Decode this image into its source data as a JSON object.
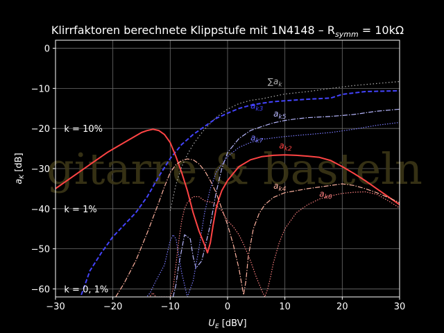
{
  "chart_data": {
    "type": "line",
    "title": "Klirrfaktoren berechnete Klippstufe mit 1N4148 – R",
    "title_sub": "symm",
    "title_tail": " =  10kΩ",
    "xlabel": "U",
    "xlabel_sub": "E",
    "xlabel_tail": " [dBV]",
    "ylabel": "a",
    "ylabel_sub": "K",
    "ylabel_tail": " [dB]",
    "xlim": [
      -30,
      30
    ],
    "ylim": [
      -62,
      2
    ],
    "xticks": [
      -30,
      -20,
      -10,
      0,
      10,
      20,
      30
    ],
    "yticks": [
      0,
      -10,
      -20,
      -30,
      -40,
      -50,
      -60
    ],
    "xtick_labels": [
      "−30",
      "−20",
      "−10",
      "0",
      "10",
      "20",
      "30"
    ],
    "ytick_labels": [
      "0",
      "−10",
      "−20",
      "−30",
      "−40",
      "−50",
      "−60"
    ],
    "grid": true,
    "watermark": "gitarre & basteln",
    "annotations": [
      {
        "text": "k = 10%",
        "x": -28.5,
        "y": -20
      },
      {
        "text": "k = 1%",
        "x": -28.5,
        "y": -40
      },
      {
        "text": "k = 0, 1%",
        "x": -28.5,
        "y": -60
      }
    ],
    "series": [
      {
        "name": "∑a_k",
        "color": "#b3b3b3",
        "dash": "1.5,3",
        "label": {
          "main": "∑a",
          "sub": "k",
          "x": 7.0,
          "y": -9.0
        },
        "x": [
          -10,
          -9,
          -8,
          -7,
          -6,
          -5,
          -4,
          -3,
          -2,
          -1,
          0,
          2,
          4,
          6,
          8,
          10,
          14,
          18,
          22,
          26,
          30
        ],
        "y": [
          -40.5,
          -34,
          -29.5,
          -26.5,
          -24,
          -22,
          -20.2,
          -18.7,
          -17.3,
          -16.2,
          -15.2,
          -13.8,
          -13,
          -12.6,
          -12,
          -11.4,
          -10.8,
          -10,
          -9.3,
          -8.8,
          -8.3
        ]
      },
      {
        "name": "a_k3",
        "color": "#4444ff",
        "dash": "6,3",
        "width": 2,
        "label": {
          "main": "a",
          "sub": "k3",
          "x": 4.0,
          "y": -15.0
        },
        "x": [
          -25.5,
          -24,
          -22,
          -20,
          -18,
          -16,
          -14,
          -12,
          -10,
          -8,
          -6,
          -4,
          -2,
          0,
          2,
          4,
          6,
          8,
          10,
          14,
          18,
          20,
          24,
          30
        ],
        "y": [
          -61.5,
          -55.5,
          -51,
          -47,
          -44,
          -41,
          -37,
          -32,
          -27.5,
          -24,
          -21.5,
          -19.5,
          -17.5,
          -16.2,
          -15,
          -14.2,
          -13.7,
          -13.3,
          -13.1,
          -12.7,
          -12.4,
          -11.5,
          -10.8,
          -10.6
        ]
      },
      {
        "name": "a_k5",
        "color": "#b8b8ff",
        "dash": "7,2,1.5,2",
        "label": {
          "main": "a",
          "sub": "k5",
          "x": 8.0,
          "y": -17.0
        },
        "x": [
          -9.5,
          -9,
          -8.5,
          -7.5,
          -6.5,
          -6,
          -5.5,
          -4.5,
          -3,
          -2,
          -1,
          0,
          2,
          4,
          6,
          8,
          10,
          12,
          14,
          18,
          22,
          26,
          30
        ],
        "y": [
          -62,
          -59,
          -54,
          -46.5,
          -47.5,
          -52,
          -54.8,
          -53,
          -44,
          -36,
          -30,
          -26,
          -22.5,
          -20.5,
          -19.5,
          -18.6,
          -18,
          -17.6,
          -17.3,
          -17,
          -16.5,
          -15.7,
          -15.2
        ]
      },
      {
        "name": "a_k7",
        "color": "#7a7aff",
        "dash": "1.5,2",
        "label": {
          "main": "a",
          "sub": "k7",
          "x": 4.0,
          "y": -23.0
        },
        "x": [
          -14,
          -13.5,
          -13,
          -12.5,
          -11,
          -10,
          -9.5,
          -9,
          -8,
          -7,
          -6,
          -5,
          -4,
          -3,
          -2,
          0,
          2,
          4,
          6,
          10,
          14,
          18,
          22,
          26,
          30
        ],
        "y": [
          -61.8,
          -61,
          -59.5,
          -58,
          -54,
          -48,
          -46.5,
          -47.5,
          -56,
          -62,
          -58,
          -50,
          -41,
          -35,
          -31,
          -27,
          -24.7,
          -23.5,
          -22.7,
          -22,
          -21.5,
          -21,
          -20.2,
          -19.2,
          -18.5
        ]
      },
      {
        "name": "a_k2",
        "color": "#ff4444",
        "dash": "",
        "width": 2,
        "label": {
          "main": "a",
          "sub": "k2",
          "x": 9.0,
          "y": -25.0
        },
        "x": [
          -30,
          -27,
          -24,
          -21,
          -18,
          -15,
          -14,
          -13,
          -12,
          -11,
          -10,
          -9,
          -8,
          -7,
          -6,
          -5,
          -4,
          -3.5,
          -3,
          -2.5,
          -2,
          -1.5,
          -1,
          0,
          1,
          2,
          4,
          6,
          8,
          10,
          12,
          14,
          16,
          18,
          20,
          22,
          24,
          26,
          28,
          30
        ],
        "y": [
          -35,
          -32,
          -29,
          -26,
          -23.5,
          -21,
          -20.5,
          -20.2,
          -20.5,
          -21.5,
          -23.5,
          -27,
          -31,
          -35.5,
          -41,
          -45.5,
          -49,
          -51,
          -48.5,
          -44,
          -40,
          -37.5,
          -35.5,
          -33,
          -31.2,
          -29.5,
          -27.8,
          -27,
          -26.7,
          -26.6,
          -26.7,
          -26.9,
          -27.2,
          -28,
          -29.5,
          -31.2,
          -33,
          -35,
          -37,
          -39
        ]
      },
      {
        "name": "a_k4",
        "color": "#ffb3a0",
        "dash": "7,2,1.5,2",
        "label": {
          "main": "a",
          "sub": "k4",
          "x": 8.0,
          "y": -35.0
        },
        "x": [
          -19.5,
          -18,
          -16,
          -14,
          -12,
          -11,
          -10,
          -9,
          -8,
          -7,
          -6,
          -5,
          -4,
          -3,
          -2,
          -1,
          0,
          1,
          2,
          2.8,
          3.2,
          3.6,
          4.5,
          5.5,
          6.5,
          8,
          10,
          12,
          14,
          16,
          18,
          20,
          22,
          24,
          26,
          28,
          30
        ],
        "y": [
          -62,
          -58.5,
          -53,
          -46,
          -38.5,
          -34.5,
          -31,
          -29,
          -28,
          -27.6,
          -27.8,
          -28.8,
          -30.5,
          -33,
          -36,
          -40,
          -44,
          -49,
          -55,
          -61.5,
          -58,
          -52,
          -45,
          -41.2,
          -39,
          -37.2,
          -36,
          -35.5,
          -35,
          -34.6,
          -34.2,
          -33.8,
          -34.2,
          -35,
          -36,
          -37.2,
          -38.5
        ]
      },
      {
        "name": "a_k6",
        "color": "#ff8080",
        "dash": "1.5,2",
        "label": {
          "main": "a",
          "sub": "k6",
          "x": 16.0,
          "y": -37.0
        },
        "x": [
          -13.5,
          -13,
          -12.5,
          -10,
          -9.5,
          -9,
          -8.5,
          -8,
          -7.5,
          -7,
          -6,
          -5,
          -4,
          -2.5,
          -1,
          0,
          1,
          2,
          3,
          4,
          5,
          6,
          6.5,
          7,
          7.5,
          8,
          9,
          10,
          12,
          14,
          16,
          18,
          20,
          22,
          24,
          26,
          28,
          30
        ],
        "y": [
          -61.8,
          -61,
          -62,
          -62,
          -60,
          -54,
          -48,
          -43,
          -40,
          -38.5,
          -37,
          -37,
          -38,
          -38.5,
          -40.5,
          -43,
          -44.5,
          -46.5,
          -49.5,
          -53,
          -57,
          -60.5,
          -62,
          -60,
          -57,
          -53.5,
          -48.5,
          -45,
          -41,
          -39,
          -37.6,
          -36.8,
          -36.2,
          -35.9,
          -35.8,
          -36.4,
          -38,
          -39.8
        ]
      }
    ]
  }
}
